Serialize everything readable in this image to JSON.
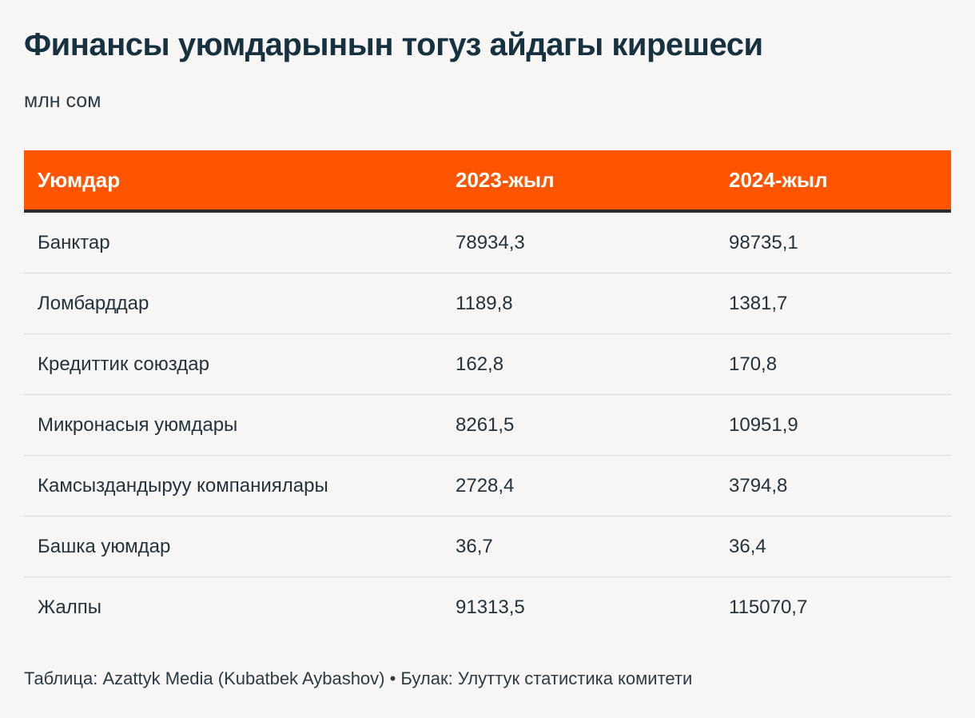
{
  "title": "Финансы уюмдарынын тогуз айдагы кирешеси",
  "subtitle": "млн сом",
  "footer": "Таблица: Azattyk Media (Kubatbek Aybashov) • Булак: Улуттук статистика комитети",
  "colors": {
    "header_bg": "#ff5500",
    "header_text": "#ffffff",
    "background": "#f7f6f4",
    "text": "#1e3443"
  },
  "chart_data": {
    "type": "table",
    "columns": [
      "Уюмдар",
      "2023-жыл",
      "2024-жыл"
    ],
    "rows": [
      [
        "Банктар",
        "78934,3",
        "98735,1"
      ],
      [
        "Ломбарддар",
        "1189,8",
        "1381,7"
      ],
      [
        "Кредиттик союздар",
        "162,8",
        "170,8"
      ],
      [
        "Микронасыя уюмдары",
        "8261,5",
        "10951,9"
      ],
      [
        "Камсыздандыруу компаниялары",
        "2728,4",
        "3794,8"
      ],
      [
        "Башка уюмдар",
        "36,7",
        "36,4"
      ],
      [
        "Жалпы",
        "91313,5",
        "115070,7"
      ]
    ]
  }
}
